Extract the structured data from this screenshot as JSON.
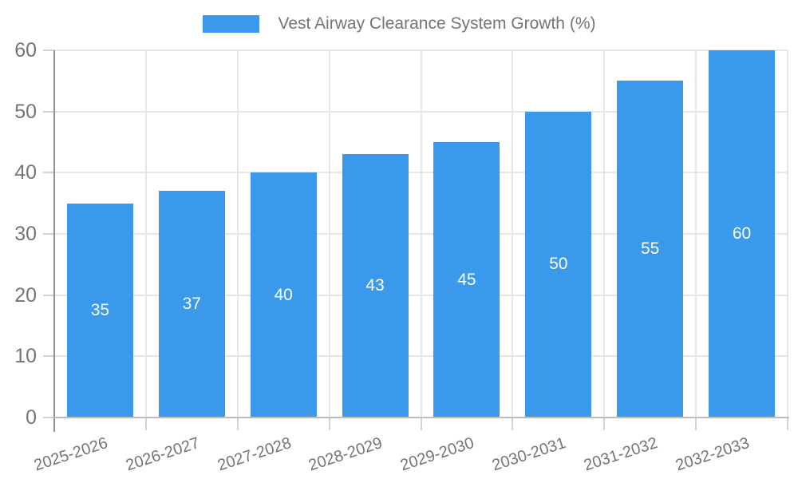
{
  "chart_data": {
    "type": "bar",
    "title": "Vest Airway Clearance System Growth (%)",
    "legend_position": "top",
    "legend_entries": [
      "Vest Airway Clearance System Growth (%)"
    ],
    "categories": [
      "2025-2026",
      "2026-2027",
      "2027-2028",
      "2028-2029",
      "2029-2030",
      "2030-2031",
      "2031-2032",
      "2032-2033"
    ],
    "series": [
      {
        "name": "Vest Airway Clearance System Growth (%)",
        "values": [
          35,
          37,
          40,
          43,
          45,
          50,
          55,
          60
        ]
      }
    ],
    "value_labels": [
      "35",
      "37",
      "40",
      "43",
      "45",
      "50",
      "55",
      "60"
    ],
    "xlabel": "",
    "ylabel": "",
    "ylim": [
      0,
      60
    ],
    "yticks": [
      0,
      10,
      20,
      30,
      40,
      50,
      60
    ],
    "grid": true,
    "value_label_position": "inside-center",
    "x_tick_rotation_deg": -18
  },
  "colors": {
    "bar": "#3b99ec",
    "axis_text": "#757575",
    "value_text": "#ffffff",
    "gridline": "#e6e6e6",
    "y_axis_line": "#929292",
    "x_axis_line": "#bdbdbd",
    "tick": "#d2d2d2",
    "background": "#ffffff"
  }
}
